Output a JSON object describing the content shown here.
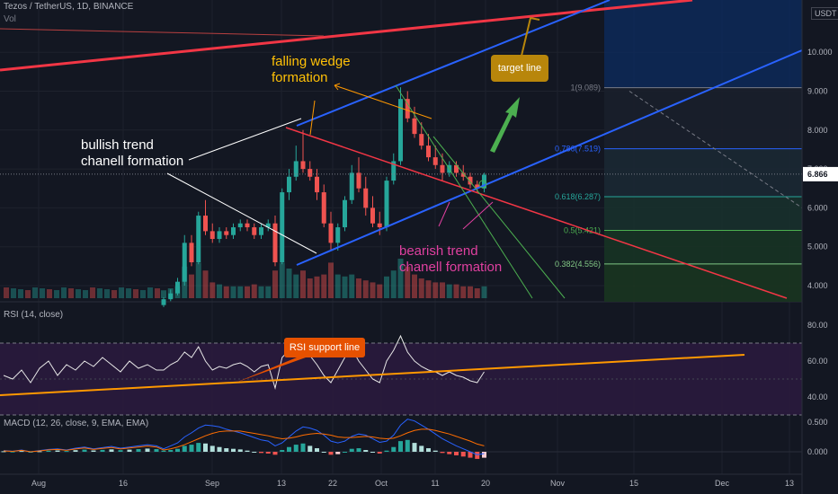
{
  "header": {
    "symbol": "Tezos / TetherUS, 1D, BINANCE",
    "vol_label": "Vol",
    "currency": "USDT"
  },
  "colors": {
    "background": "#131722",
    "grid": "#1e222d",
    "up": "#26a69a",
    "down": "#ef5350",
    "blue_line": "#2962ff",
    "red_line": "#f23645",
    "green_line": "#4caf50",
    "orange": "#ff9800",
    "rsi_line": "#e6e6e6",
    "rsi_bg": "#2a1a3d",
    "macd_line": "#2962ff",
    "signal_line": "#ff6d00",
    "callout_fill": "#b8860b"
  },
  "chart_data": {
    "type": "candlestick",
    "x_ticks": [
      "Aug",
      "16",
      "Sep",
      "13",
      "22",
      "Oct",
      "11",
      "20",
      "Nov",
      "15",
      "Dec",
      "13"
    ],
    "price_axis": {
      "ticks": [
        "4.000",
        "5.000",
        "6.000",
        "7.000",
        "8.000",
        "9.000",
        "10.000"
      ],
      "current_price": "6.866"
    },
    "candles": [
      [
        3.5,
        3.7,
        3.45,
        3.65
      ],
      [
        3.65,
        3.9,
        3.6,
        3.8
      ],
      [
        3.8,
        4.2,
        3.75,
        4.1
      ],
      [
        4.1,
        5.3,
        4.0,
        5.1
      ],
      [
        5.1,
        5.3,
        4.5,
        4.6
      ],
      [
        4.6,
        5.9,
        4.55,
        5.8
      ],
      [
        5.8,
        6.2,
        5.3,
        5.4
      ],
      [
        5.4,
        5.6,
        5.1,
        5.2
      ],
      [
        5.2,
        5.5,
        5.1,
        5.4
      ],
      [
        5.4,
        5.5,
        5.2,
        5.3
      ],
      [
        5.3,
        5.6,
        5.2,
        5.5
      ],
      [
        5.5,
        5.7,
        5.4,
        5.6
      ],
      [
        5.6,
        5.7,
        5.4,
        5.5
      ],
      [
        5.5,
        5.6,
        5.2,
        5.3
      ],
      [
        5.3,
        5.6,
        5.2,
        5.5
      ],
      [
        5.5,
        5.7,
        5.4,
        5.6
      ],
      [
        5.6,
        5.8,
        4.5,
        4.6
      ],
      [
        4.6,
        6.5,
        4.55,
        6.4
      ],
      [
        6.4,
        7.0,
        6.2,
        6.8
      ],
      [
        6.8,
        7.6,
        6.7,
        7.2
      ],
      [
        7.2,
        8.0,
        6.9,
        7.0
      ],
      [
        7.0,
        7.2,
        6.7,
        6.8
      ],
      [
        6.8,
        7.0,
        6.2,
        6.4
      ],
      [
        6.4,
        6.6,
        5.5,
        5.6
      ],
      [
        5.6,
        5.9,
        4.9,
        5.1
      ],
      [
        5.1,
        5.6,
        4.9,
        5.5
      ],
      [
        5.5,
        6.3,
        5.4,
        6.2
      ],
      [
        6.2,
        7.1,
        6.1,
        6.9
      ],
      [
        6.9,
        7.3,
        6.4,
        6.5
      ],
      [
        6.5,
        6.8,
        5.8,
        6.0
      ],
      [
        6.0,
        6.3,
        5.5,
        5.6
      ],
      [
        5.6,
        5.9,
        5.3,
        5.5
      ],
      [
        5.5,
        6.8,
        5.4,
        6.7
      ],
      [
        6.7,
        7.4,
        6.6,
        7.2
      ],
      [
        7.2,
        9.1,
        7.1,
        8.8
      ],
      [
        8.8,
        9.0,
        8.2,
        8.3
      ],
      [
        8.3,
        8.6,
        7.8,
        7.9
      ],
      [
        7.9,
        8.2,
        7.5,
        7.6
      ],
      [
        7.6,
        7.9,
        7.2,
        7.3
      ],
      [
        7.3,
        7.6,
        7.0,
        7.1
      ],
      [
        7.1,
        7.4,
        6.7,
        6.9
      ],
      [
        6.9,
        7.2,
        6.8,
        7.1
      ],
      [
        7.1,
        7.2,
        6.8,
        6.9
      ],
      [
        6.9,
        7.1,
        6.7,
        6.8
      ],
      [
        6.8,
        6.9,
        6.5,
        6.6
      ],
      [
        6.6,
        6.7,
        6.4,
        6.5
      ],
      [
        6.5,
        6.9,
        6.4,
        6.85
      ]
    ],
    "volumes": [
      0.2,
      0.25,
      0.3,
      0.8,
      0.6,
      0.9,
      0.7,
      0.4,
      0.35,
      0.3,
      0.3,
      0.3,
      0.3,
      0.35,
      0.3,
      0.3,
      0.7,
      0.9,
      0.75,
      0.6,
      0.7,
      0.5,
      0.55,
      0.6,
      0.9,
      0.6,
      0.55,
      0.6,
      0.5,
      0.45,
      0.4,
      0.35,
      0.55,
      0.7,
      1.0,
      0.8,
      0.6,
      0.5,
      0.45,
      0.4,
      0.4,
      0.35,
      0.35,
      0.3,
      0.3,
      0.25,
      0.3
    ],
    "rsi": {
      "label": "RSI (14, close)",
      "ticks": [
        "80.00",
        "60.00",
        "40.00"
      ],
      "values": [
        55,
        58,
        60,
        65,
        62,
        68,
        60,
        55,
        57,
        56,
        58,
        59,
        57,
        54,
        57,
        58,
        45,
        62,
        66,
        70,
        67,
        63,
        58,
        52,
        48,
        55,
        62,
        67,
        60,
        55,
        50,
        48,
        60,
        66,
        74,
        65,
        60,
        57,
        55,
        54,
        52,
        54,
        52,
        51,
        49,
        48,
        54
      ]
    },
    "macd": {
      "label": "MACD (12, 26, close, 9, EMA, EMA)",
      "ticks": [
        "0.500",
        "0.000"
      ],
      "hist": [
        0.02,
        0.03,
        0.05,
        0.1,
        0.12,
        0.15,
        0.14,
        0.1,
        0.08,
        0.06,
        0.05,
        0.04,
        0.02,
        0.0,
        -0.02,
        -0.03,
        -0.05,
        0.03,
        0.08,
        0.12,
        0.14,
        0.1,
        0.06,
        0.0,
        -0.05,
        -0.04,
        0.0,
        0.05,
        0.06,
        0.03,
        0.0,
        -0.03,
        0.02,
        0.08,
        0.18,
        0.2,
        0.15,
        0.1,
        0.06,
        0.02,
        -0.02,
        -0.04,
        -0.06,
        -0.08,
        -0.1,
        -0.12,
        -0.1
      ],
      "macd": [
        0.05,
        0.1,
        0.15,
        0.25,
        0.32,
        0.4,
        0.45,
        0.44,
        0.42,
        0.38,
        0.35,
        0.32,
        0.28,
        0.24,
        0.2,
        0.18,
        0.1,
        0.15,
        0.25,
        0.35,
        0.42,
        0.4,
        0.36,
        0.28,
        0.18,
        0.15,
        0.18,
        0.26,
        0.3,
        0.28,
        0.22,
        0.16,
        0.18,
        0.28,
        0.45,
        0.55,
        0.52,
        0.45,
        0.38,
        0.3,
        0.22,
        0.16,
        0.1,
        0.05,
        0.0,
        -0.05,
        -0.03
      ],
      "signal": [
        0.03,
        0.05,
        0.08,
        0.12,
        0.17,
        0.22,
        0.27,
        0.31,
        0.34,
        0.35,
        0.35,
        0.35,
        0.33,
        0.31,
        0.29,
        0.27,
        0.24,
        0.22,
        0.23,
        0.25,
        0.28,
        0.3,
        0.31,
        0.3,
        0.28,
        0.25,
        0.24,
        0.24,
        0.25,
        0.26,
        0.25,
        0.23,
        0.22,
        0.23,
        0.27,
        0.32,
        0.36,
        0.38,
        0.38,
        0.36,
        0.33,
        0.3,
        0.26,
        0.22,
        0.18,
        0.13,
        0.1
      ]
    },
    "fib_levels": [
      {
        "label": "1(9.089)",
        "value": 9.089,
        "color": "#787b86"
      },
      {
        "label": "0.786(7.519)",
        "value": 7.519,
        "color": "#2962ff"
      },
      {
        "label": "0.618(6.287)",
        "value": 6.287,
        "color": "#26a69a"
      },
      {
        "label": "0.5(5.421)",
        "value": 5.421,
        "color": "#4caf50"
      },
      {
        "label": "0.382(4.556)",
        "value": 4.556,
        "color": "#81c784"
      }
    ],
    "annotations": {
      "wedge": "falling wedge formation",
      "bullish": "bullish trend chanell formation",
      "bearish": "bearish trend chanell formation",
      "target": "target line",
      "rsi_support": "RSI support line"
    }
  }
}
